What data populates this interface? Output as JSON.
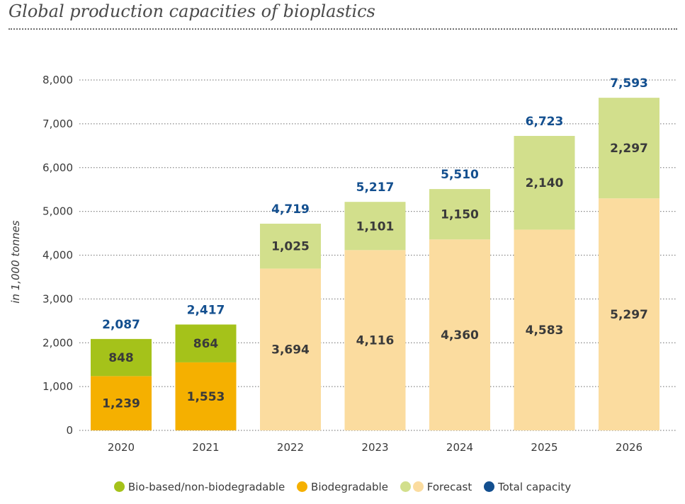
{
  "title": "Global production capacities of bioplastics",
  "colors": {
    "bio_based": "#a5c21a",
    "biodegradable": "#f5b000",
    "forecast_bio_based": "#d2df8c",
    "forecast_biodegradable": "#fbdc9f",
    "total": "#134f8f",
    "segment_label": "#3a3a3a",
    "axis_text": "#3a3a3a",
    "grid": "#888888"
  },
  "chart_data": {
    "type": "bar",
    "stacked": true,
    "title": "Global production capacities of bioplastics",
    "xlabel": "",
    "ylabel": "in 1,000 tonnes",
    "ylim": [
      0,
      8000
    ],
    "yticks": [
      0,
      1000,
      2000,
      3000,
      4000,
      5000,
      6000,
      7000,
      8000
    ],
    "ytick_labels": [
      "0",
      "1,000",
      "2,000",
      "3,000",
      "4,000",
      "5,000",
      "6,000",
      "7,000",
      "8,000"
    ],
    "grid": "horizontal dotted",
    "categories": [
      "2020",
      "2021",
      "2022",
      "2023",
      "2024",
      "2025",
      "2026"
    ],
    "forecast": [
      false,
      false,
      true,
      true,
      true,
      true,
      true
    ],
    "series": [
      {
        "name": "Biodegradable",
        "values": [
          1239,
          1553,
          3694,
          4116,
          4360,
          4583,
          5297
        ],
        "labels": [
          "1,239",
          "1,553",
          "3,694",
          "4,116",
          "4,360",
          "4,583",
          "5,297"
        ]
      },
      {
        "name": "Bio-based/non-biodegradable",
        "values": [
          848,
          864,
          1025,
          1101,
          1150,
          2140,
          2297
        ],
        "labels": [
          "848",
          "864",
          "1,025",
          "1,101",
          "1,150",
          "2,140",
          "2,297"
        ]
      }
    ],
    "totals": [
      2087,
      2417,
      4719,
      5217,
      5510,
      6723,
      7593
    ],
    "total_labels": [
      "2,087",
      "2,417",
      "4,719",
      "5,217",
      "5,510",
      "6,723",
      "7,593"
    ]
  },
  "legend": {
    "bio_based": "Bio-based/non-biodegradable",
    "biodegradable": "Biodegradable",
    "forecast": "Forecast",
    "total": "Total capacity"
  }
}
